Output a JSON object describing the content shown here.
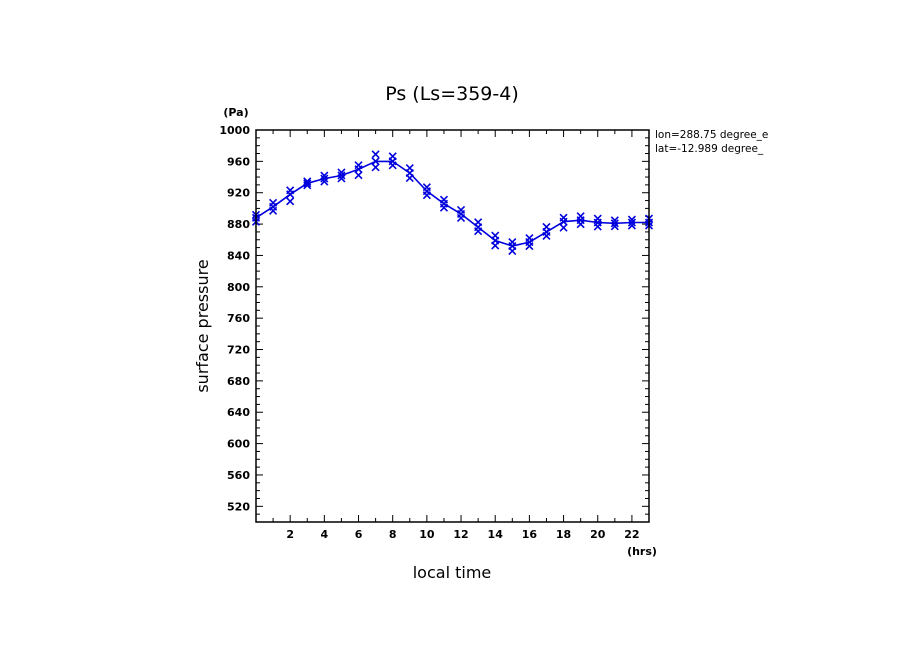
{
  "chart_data": {
    "type": "line",
    "title": "Ps (Ls=359-4)",
    "xlabel": "local time",
    "ylabel": "surface pressure",
    "x_unit": "(hrs)",
    "y_unit": "(Pa)",
    "xlim": [
      0,
      23
    ],
    "ylim": [
      500,
      1000
    ],
    "xticks": [
      2,
      4,
      6,
      8,
      10,
      12,
      14,
      16,
      18,
      20,
      22
    ],
    "yticks": [
      520,
      560,
      600,
      640,
      680,
      720,
      760,
      800,
      840,
      880,
      920,
      960,
      1000
    ],
    "annotations": [
      "lon=288.75 degree_e",
      "lat=-12.989 degree_"
    ],
    "color": "#0000dd",
    "series": [
      {
        "name": "surface pressure",
        "x": [
          0,
          1,
          2,
          3,
          4,
          5,
          6,
          7,
          8,
          9,
          10,
          11,
          12,
          13,
          14,
          15,
          16,
          17,
          18,
          19,
          20,
          21,
          22,
          23
        ],
        "values": [
          888,
          902,
          918,
          932,
          938,
          942,
          950,
          960,
          960,
          945,
          922,
          906,
          893,
          876,
          859,
          852,
          857,
          870,
          883,
          885,
          882,
          881,
          882,
          882
        ],
        "markers_offset": [
          [
            -3,
            4
          ],
          [
            -4,
            4
          ],
          [
            -4,
            7
          ],
          [
            -2,
            2
          ],
          [
            -3,
            3
          ],
          [
            -3,
            3
          ],
          [
            -4,
            6
          ],
          [
            -7,
            6
          ],
          [
            -5,
            4
          ],
          [
            -5,
            5
          ],
          [
            -4,
            4
          ],
          [
            -4,
            4
          ],
          [
            -4,
            4
          ],
          [
            -5,
            4
          ],
          [
            -5,
            5
          ],
          [
            -4,
            5
          ],
          [
            -4,
            4
          ],
          [
            -5,
            4
          ],
          [
            -4,
            6
          ],
          [
            -4,
            4
          ],
          [
            -4,
            4
          ],
          [
            -3,
            3
          ],
          [
            -3,
            3
          ],
          [
            -4,
            3
          ]
        ]
      }
    ]
  }
}
